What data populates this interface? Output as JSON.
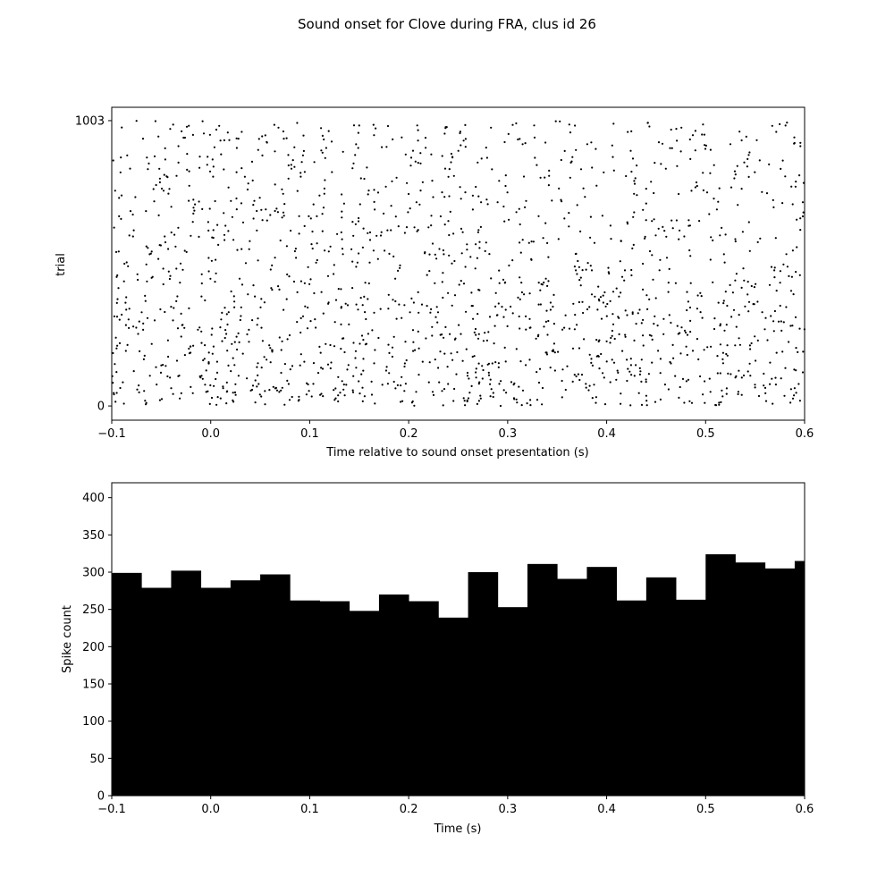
{
  "figure_title": "Sound onset for Clove during FRA,  clus id 26",
  "chart_data": [
    {
      "type": "scatter",
      "subtype": "raster",
      "xlabel": "Time relative to sound onset presentation (s)",
      "ylabel": "trial",
      "xlim": [
        -0.1,
        0.6
      ],
      "ylim": [
        -50,
        1050
      ],
      "x_ticks": [
        -0.1,
        0.0,
        0.1,
        0.2,
        0.3,
        0.4,
        0.5,
        0.6
      ],
      "x_tick_labels": [
        "−0.1",
        "0.0",
        "0.1",
        "0.2",
        "0.3",
        "0.4",
        "0.5",
        "0.6"
      ],
      "y_ticks": [
        0,
        1003
      ],
      "y_tick_labels": [
        "0",
        "1003"
      ],
      "n_trials": 1003,
      "marker_color": "#000000",
      "density_profile": [
        {
          "trial_range": [
            0,
            100
          ],
          "relative_density": 1.0
        },
        {
          "trial_range": [
            100,
            400
          ],
          "relative_density": 0.8
        },
        {
          "trial_range": [
            400,
            700
          ],
          "relative_density": 0.55
        },
        {
          "trial_range": [
            700,
            1003
          ],
          "relative_density": 0.5
        }
      ],
      "grid": false
    },
    {
      "type": "bar",
      "subtype": "histogram",
      "xlabel": "Time (s)",
      "ylabel": "Spike count",
      "xlim": [
        -0.1,
        0.6
      ],
      "ylim": [
        0,
        420
      ],
      "bin_edges": [
        -0.1,
        -0.07,
        -0.04,
        -0.01,
        0.02,
        0.05,
        0.08,
        0.11,
        0.14,
        0.17,
        0.2,
        0.23,
        0.26,
        0.29,
        0.32,
        0.35,
        0.38,
        0.41,
        0.44,
        0.47,
        0.5,
        0.53,
        0.56,
        0.59,
        0.6
      ],
      "values": [
        299,
        279,
        302,
        279,
        289,
        297,
        262,
        261,
        248,
        270,
        261,
        239,
        300,
        253,
        311,
        291,
        307,
        262,
        293,
        263,
        324,
        313,
        305,
        315
      ],
      "x_ticks": [
        -0.1,
        0.0,
        0.1,
        0.2,
        0.3,
        0.4,
        0.5,
        0.6
      ],
      "x_tick_labels": [
        "−0.1",
        "0.0",
        "0.1",
        "0.2",
        "0.3",
        "0.4",
        "0.5",
        "0.6"
      ],
      "y_ticks": [
        0,
        50,
        100,
        150,
        200,
        250,
        300,
        350,
        400
      ],
      "y_tick_labels": [
        "0",
        "50",
        "100",
        "150",
        "200",
        "250",
        "300",
        "350",
        "400"
      ],
      "bar_color": "#000000",
      "grid": false
    }
  ]
}
